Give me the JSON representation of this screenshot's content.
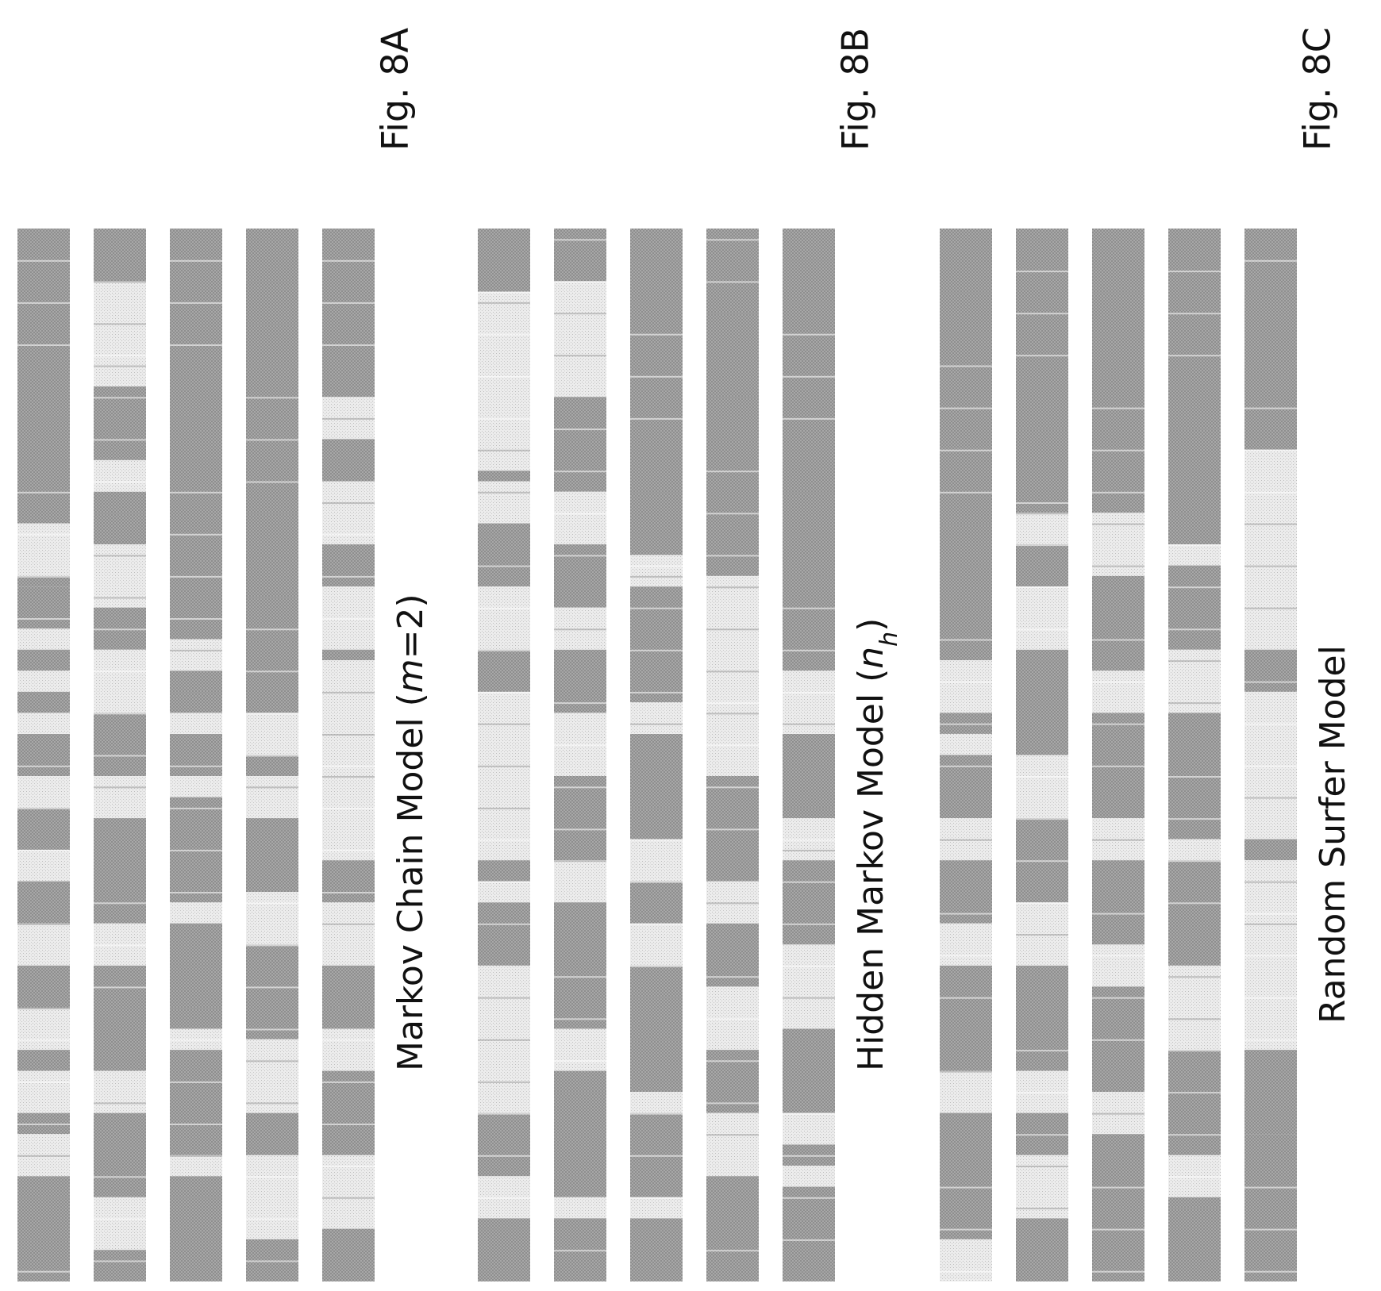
{
  "colors": {
    "dark": "#a2a2a2",
    "light": "#e6e6e6",
    "text": "#111111",
    "background": "#ffffff"
  },
  "figures": [
    {
      "id": "8A",
      "fig_label": "Fig. 8A",
      "model_label_parts": [
        {
          "text": "Markov Chain Model (",
          "italic": false
        },
        {
          "text": "m",
          "italic": true
        },
        {
          "text": "=2)",
          "italic": false
        }
      ],
      "strips": [
        {
          "runs": [
            [
              0.0,
              0.28,
              "d"
            ],
            [
              0.28,
              0.33,
              "l"
            ],
            [
              0.33,
              0.34,
              "d"
            ],
            [
              0.34,
              0.38,
              "d"
            ],
            [
              0.38,
              0.4,
              "l"
            ],
            [
              0.4,
              0.42,
              "d"
            ],
            [
              0.42,
              0.44,
              "l"
            ],
            [
              0.44,
              0.46,
              "d"
            ],
            [
              0.46,
              0.48,
              "l"
            ],
            [
              0.48,
              0.52,
              "d"
            ],
            [
              0.52,
              0.55,
              "l"
            ],
            [
              0.55,
              0.59,
              "d"
            ],
            [
              0.59,
              0.62,
              "l"
            ],
            [
              0.62,
              0.66,
              "d"
            ],
            [
              0.66,
              0.7,
              "l"
            ],
            [
              0.7,
              0.74,
              "d"
            ],
            [
              0.74,
              0.78,
              "l"
            ],
            [
              0.78,
              0.8,
              "d"
            ],
            [
              0.8,
              0.84,
              "l"
            ],
            [
              0.84,
              0.86,
              "d"
            ],
            [
              0.86,
              0.9,
              "l"
            ],
            [
              0.9,
              1.0,
              "d"
            ]
          ]
        },
        {
          "runs": [
            [
              0.0,
              0.05,
              "d"
            ],
            [
              0.05,
              0.15,
              "l"
            ],
            [
              0.15,
              0.22,
              "d"
            ],
            [
              0.22,
              0.25,
              "l"
            ],
            [
              0.25,
              0.3,
              "d"
            ],
            [
              0.3,
              0.36,
              "l"
            ],
            [
              0.36,
              0.4,
              "d"
            ],
            [
              0.4,
              0.46,
              "l"
            ],
            [
              0.46,
              0.52,
              "d"
            ],
            [
              0.52,
              0.56,
              "l"
            ],
            [
              0.56,
              0.66,
              "d"
            ],
            [
              0.66,
              0.7,
              "l"
            ],
            [
              0.7,
              0.8,
              "d"
            ],
            [
              0.8,
              0.84,
              "l"
            ],
            [
              0.84,
              0.92,
              "d"
            ],
            [
              0.92,
              0.97,
              "l"
            ],
            [
              0.97,
              1.0,
              "d"
            ]
          ]
        },
        {
          "runs": [
            [
              0.0,
              0.39,
              "d"
            ],
            [
              0.39,
              0.42,
              "l"
            ],
            [
              0.42,
              0.46,
              "d"
            ],
            [
              0.46,
              0.48,
              "l"
            ],
            [
              0.48,
              0.52,
              "d"
            ],
            [
              0.52,
              0.54,
              "l"
            ],
            [
              0.54,
              0.64,
              "d"
            ],
            [
              0.64,
              0.66,
              "l"
            ],
            [
              0.66,
              0.76,
              "d"
            ],
            [
              0.76,
              0.78,
              "l"
            ],
            [
              0.78,
              0.88,
              "d"
            ],
            [
              0.88,
              0.9,
              "l"
            ],
            [
              0.9,
              1.0,
              "d"
            ]
          ]
        },
        {
          "runs": [
            [
              0.0,
              0.46,
              "d"
            ],
            [
              0.46,
              0.5,
              "l"
            ],
            [
              0.5,
              0.52,
              "d"
            ],
            [
              0.52,
              0.56,
              "l"
            ],
            [
              0.56,
              0.63,
              "d"
            ],
            [
              0.63,
              0.68,
              "l"
            ],
            [
              0.68,
              0.77,
              "d"
            ],
            [
              0.77,
              0.84,
              "l"
            ],
            [
              0.84,
              0.88,
              "d"
            ],
            [
              0.88,
              0.96,
              "l"
            ],
            [
              0.96,
              1.0,
              "d"
            ]
          ]
        },
        {
          "runs": [
            [
              0.0,
              0.16,
              "d"
            ],
            [
              0.16,
              0.2,
              "l"
            ],
            [
              0.2,
              0.24,
              "d"
            ],
            [
              0.24,
              0.3,
              "l"
            ],
            [
              0.3,
              0.34,
              "d"
            ],
            [
              0.34,
              0.4,
              "l"
            ],
            [
              0.4,
              0.41,
              "d"
            ],
            [
              0.41,
              0.6,
              "l"
            ],
            [
              0.6,
              0.64,
              "d"
            ],
            [
              0.64,
              0.7,
              "l"
            ],
            [
              0.7,
              0.76,
              "d"
            ],
            [
              0.76,
              0.8,
              "l"
            ],
            [
              0.8,
              0.88,
              "d"
            ],
            [
              0.88,
              0.95,
              "l"
            ],
            [
              0.95,
              1.0,
              "d"
            ]
          ]
        }
      ]
    },
    {
      "id": "8B",
      "fig_label": "Fig. 8B",
      "model_label_parts": [
        {
          "text": "Hidden Markov Model (",
          "italic": false
        },
        {
          "text": "n",
          "italic": true
        },
        {
          "text": "h",
          "italic": true,
          "sub": true
        },
        {
          "text": ")",
          "italic": false
        }
      ],
      "strips": [
        {
          "runs": [
            [
              0.0,
              0.06,
              "d"
            ],
            [
              0.06,
              0.23,
              "l"
            ],
            [
              0.23,
              0.24,
              "d"
            ],
            [
              0.24,
              0.28,
              "l"
            ],
            [
              0.28,
              0.34,
              "d"
            ],
            [
              0.34,
              0.4,
              "l"
            ],
            [
              0.4,
              0.44,
              "d"
            ],
            [
              0.44,
              0.6,
              "l"
            ],
            [
              0.6,
              0.62,
              "d"
            ],
            [
              0.62,
              0.64,
              "l"
            ],
            [
              0.64,
              0.7,
              "d"
            ],
            [
              0.7,
              0.84,
              "l"
            ],
            [
              0.84,
              0.9,
              "d"
            ],
            [
              0.9,
              0.94,
              "l"
            ],
            [
              0.94,
              1.0,
              "d"
            ]
          ]
        },
        {
          "runs": [
            [
              0.0,
              0.05,
              "d"
            ],
            [
              0.05,
              0.16,
              "l"
            ],
            [
              0.16,
              0.25,
              "d"
            ],
            [
              0.25,
              0.3,
              "l"
            ],
            [
              0.3,
              0.36,
              "d"
            ],
            [
              0.36,
              0.4,
              "l"
            ],
            [
              0.4,
              0.46,
              "d"
            ],
            [
              0.46,
              0.52,
              "l"
            ],
            [
              0.52,
              0.6,
              "d"
            ],
            [
              0.6,
              0.64,
              "l"
            ],
            [
              0.64,
              0.76,
              "d"
            ],
            [
              0.76,
              0.8,
              "l"
            ],
            [
              0.8,
              0.92,
              "d"
            ],
            [
              0.92,
              0.94,
              "l"
            ],
            [
              0.94,
              1.0,
              "d"
            ]
          ]
        },
        {
          "runs": [
            [
              0.0,
              0.31,
              "d"
            ],
            [
              0.31,
              0.34,
              "l"
            ],
            [
              0.34,
              0.45,
              "d"
            ],
            [
              0.45,
              0.48,
              "l"
            ],
            [
              0.48,
              0.58,
              "d"
            ],
            [
              0.58,
              0.62,
              "l"
            ],
            [
              0.62,
              0.66,
              "d"
            ],
            [
              0.66,
              0.7,
              "l"
            ],
            [
              0.7,
              0.82,
              "d"
            ],
            [
              0.82,
              0.84,
              "l"
            ],
            [
              0.84,
              0.92,
              "d"
            ],
            [
              0.92,
              0.94,
              "l"
            ],
            [
              0.94,
              1.0,
              "d"
            ]
          ]
        },
        {
          "runs": [
            [
              0.0,
              0.33,
              "d"
            ],
            [
              0.33,
              0.52,
              "l"
            ],
            [
              0.52,
              0.62,
              "d"
            ],
            [
              0.62,
              0.66,
              "l"
            ],
            [
              0.66,
              0.72,
              "d"
            ],
            [
              0.72,
              0.78,
              "l"
            ],
            [
              0.78,
              0.84,
              "d"
            ],
            [
              0.84,
              0.9,
              "l"
            ],
            [
              0.9,
              1.0,
              "d"
            ]
          ]
        },
        {
          "runs": [
            [
              0.0,
              0.42,
              "d"
            ],
            [
              0.42,
              0.48,
              "l"
            ],
            [
              0.48,
              0.56,
              "d"
            ],
            [
              0.56,
              0.6,
              "l"
            ],
            [
              0.6,
              0.68,
              "d"
            ],
            [
              0.68,
              0.76,
              "l"
            ],
            [
              0.76,
              0.84,
              "d"
            ],
            [
              0.84,
              0.87,
              "l"
            ],
            [
              0.87,
              0.89,
              "d"
            ],
            [
              0.89,
              0.91,
              "l"
            ],
            [
              0.91,
              1.0,
              "d"
            ]
          ]
        }
      ]
    },
    {
      "id": "8C",
      "fig_label": "Fig. 8C",
      "model_label_parts": [
        {
          "text": "Random Surfer Model",
          "italic": false
        }
      ],
      "strips": [
        {
          "runs": [
            [
              0.0,
              0.41,
              "d"
            ],
            [
              0.41,
              0.46,
              "l"
            ],
            [
              0.46,
              0.48,
              "d"
            ],
            [
              0.48,
              0.5,
              "l"
            ],
            [
              0.5,
              0.56,
              "d"
            ],
            [
              0.56,
              0.6,
              "l"
            ],
            [
              0.6,
              0.66,
              "d"
            ],
            [
              0.66,
              0.7,
              "l"
            ],
            [
              0.7,
              0.8,
              "d"
            ],
            [
              0.8,
              0.84,
              "l"
            ],
            [
              0.84,
              0.96,
              "d"
            ],
            [
              0.96,
              1.0,
              "l"
            ]
          ]
        },
        {
          "runs": [
            [
              0.0,
              0.27,
              "d"
            ],
            [
              0.27,
              0.3,
              "l"
            ],
            [
              0.3,
              0.34,
              "d"
            ],
            [
              0.34,
              0.4,
              "l"
            ],
            [
              0.4,
              0.5,
              "d"
            ],
            [
              0.5,
              0.56,
              "l"
            ],
            [
              0.56,
              0.64,
              "d"
            ],
            [
              0.64,
              0.7,
              "l"
            ],
            [
              0.7,
              0.8,
              "d"
            ],
            [
              0.8,
              0.84,
              "l"
            ],
            [
              0.84,
              0.88,
              "d"
            ],
            [
              0.88,
              0.94,
              "l"
            ],
            [
              0.94,
              1.0,
              "d"
            ]
          ]
        },
        {
          "runs": [
            [
              0.0,
              0.27,
              "d"
            ],
            [
              0.27,
              0.33,
              "l"
            ],
            [
              0.33,
              0.42,
              "d"
            ],
            [
              0.42,
              0.46,
              "l"
            ],
            [
              0.46,
              0.56,
              "d"
            ],
            [
              0.56,
              0.6,
              "l"
            ],
            [
              0.6,
              0.68,
              "d"
            ],
            [
              0.68,
              0.72,
              "l"
            ],
            [
              0.72,
              0.82,
              "d"
            ],
            [
              0.82,
              0.86,
              "l"
            ],
            [
              0.86,
              1.0,
              "d"
            ]
          ]
        },
        {
          "runs": [
            [
              0.0,
              0.3,
              "d"
            ],
            [
              0.3,
              0.32,
              "l"
            ],
            [
              0.32,
              0.4,
              "d"
            ],
            [
              0.4,
              0.46,
              "l"
            ],
            [
              0.46,
              0.58,
              "d"
            ],
            [
              0.58,
              0.6,
              "l"
            ],
            [
              0.6,
              0.7,
              "d"
            ],
            [
              0.7,
              0.78,
              "l"
            ],
            [
              0.78,
              0.88,
              "d"
            ],
            [
              0.88,
              0.92,
              "l"
            ],
            [
              0.92,
              1.0,
              "d"
            ]
          ]
        },
        {
          "runs": [
            [
              0.0,
              0.21,
              "d"
            ],
            [
              0.21,
              0.4,
              "l"
            ],
            [
              0.4,
              0.44,
              "d"
            ],
            [
              0.44,
              0.58,
              "l"
            ],
            [
              0.58,
              0.6,
              "d"
            ],
            [
              0.6,
              0.78,
              "l"
            ],
            [
              0.78,
              0.86,
              "d"
            ],
            [
              0.86,
              1.0,
              "d"
            ]
          ]
        }
      ]
    }
  ]
}
